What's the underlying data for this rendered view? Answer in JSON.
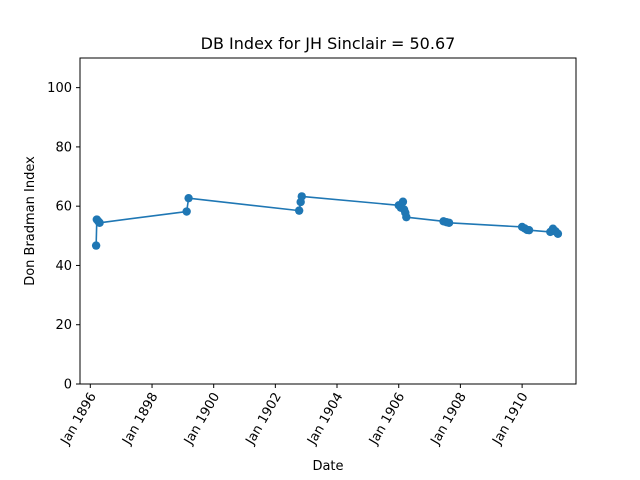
{
  "chart_data": {
    "type": "line",
    "title": "DB Index for JH Sinclair = 50.67",
    "xlabel": "Date",
    "ylabel": "Don Bradman Index",
    "xlim": [
      "1895-09-01",
      "1911-10-01"
    ],
    "ylim": [
      0,
      110
    ],
    "yticks": [
      0,
      20,
      40,
      60,
      80,
      100
    ],
    "xticks": [
      {
        "date": "1896-01-01",
        "label": "Jan 1896"
      },
      {
        "date": "1898-01-01",
        "label": "Jan 1898"
      },
      {
        "date": "1900-01-01",
        "label": "Jan 1900"
      },
      {
        "date": "1902-01-01",
        "label": "Jan 1902"
      },
      {
        "date": "1904-01-01",
        "label": "Jan 1904"
      },
      {
        "date": "1906-01-01",
        "label": "Jan 1906"
      },
      {
        "date": "1908-01-01",
        "label": "Jan 1908"
      },
      {
        "date": "1910-01-01",
        "label": "Jan 1910"
      }
    ],
    "grid": false,
    "color": "#1f77b4",
    "series": [
      {
        "points": [
          {
            "x": "1896-03-10",
            "y": 46.7
          },
          {
            "x": "1896-03-18",
            "y": 55.5
          },
          {
            "x": "1896-04-05",
            "y": 54.9
          },
          {
            "x": "1896-04-20",
            "y": 54.4
          },
          {
            "x": "1899-02-15",
            "y": 58.2
          },
          {
            "x": "1899-03-10",
            "y": 62.7
          },
          {
            "x": "1902-10-10",
            "y": 58.5
          },
          {
            "x": "1902-10-28",
            "y": 61.4
          },
          {
            "x": "1902-11-10",
            "y": 63.3
          },
          {
            "x": "1906-01-01",
            "y": 60.3
          },
          {
            "x": "1906-01-25",
            "y": 59.5
          },
          {
            "x": "1906-02-20",
            "y": 61.5
          },
          {
            "x": "1906-03-05",
            "y": 58.9
          },
          {
            "x": "1906-03-20",
            "y": 57.8
          },
          {
            "x": "1906-04-01",
            "y": 56.3
          },
          {
            "x": "1907-06-15",
            "y": 54.9
          },
          {
            "x": "1907-07-20",
            "y": 54.6
          },
          {
            "x": "1907-08-20",
            "y": 54.4
          },
          {
            "x": "1910-01-01",
            "y": 53.0
          },
          {
            "x": "1910-02-01",
            "y": 52.5
          },
          {
            "x": "1910-03-01",
            "y": 52.0
          },
          {
            "x": "1910-03-25",
            "y": 51.9
          },
          {
            "x": "1910-12-01",
            "y": 51.3
          },
          {
            "x": "1911-01-01",
            "y": 52.4
          },
          {
            "x": "1911-02-01",
            "y": 51.5
          },
          {
            "x": "1911-03-01",
            "y": 50.7
          }
        ]
      }
    ]
  }
}
